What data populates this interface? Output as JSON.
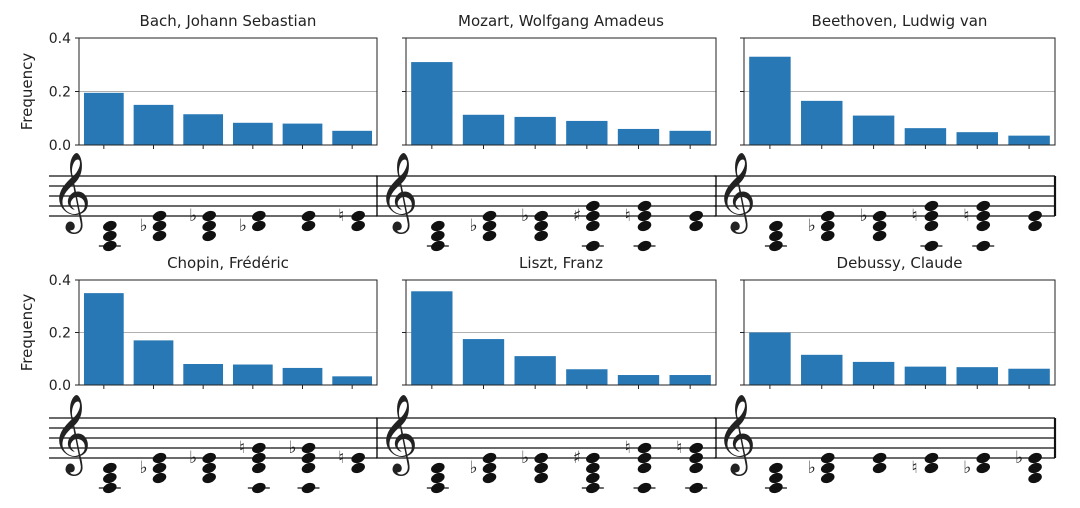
{
  "chart_data": [
    {
      "type": "bar",
      "title": "Bach, Johann Sebastian",
      "ylabel": "Frequency",
      "ylim": [
        0,
        0.4
      ],
      "yticks": [
        "0.0",
        "0.2",
        "0.4"
      ],
      "values": [
        0.195,
        0.15,
        0.115,
        0.083,
        0.08,
        0.053
      ],
      "gridline": 0.2,
      "chords": [
        {
          "notes": [
            -6,
            -4,
            -2
          ],
          "acc": []
        },
        {
          "notes": [
            -4,
            -2,
            0
          ],
          "acc": [
            -2
          ]
        },
        {
          "notes": [
            -4,
            -2,
            0
          ],
          "acc": [
            0
          ]
        },
        {
          "notes": [
            -2,
            0
          ],
          "acc": [
            -2
          ]
        },
        {
          "notes": [
            -2,
            0
          ],
          "acc": []
        },
        {
          "notes": [
            -2,
            0
          ],
          "acc": [
            0
          ],
          "nat": true
        }
      ]
    },
    {
      "type": "bar",
      "title": "Mozart, Wolfgang Amadeus",
      "ylabel": "",
      "ylim": [
        0,
        0.4
      ],
      "yticks": [],
      "values": [
        0.31,
        0.113,
        0.105,
        0.09,
        0.06,
        0.053
      ],
      "gridline": 0.2,
      "chords": [
        {
          "notes": [
            -6,
            -4,
            -2
          ],
          "acc": []
        },
        {
          "notes": [
            -4,
            -2,
            0
          ],
          "acc": [
            -2
          ]
        },
        {
          "notes": [
            -4,
            -2,
            0
          ],
          "acc": [
            0
          ]
        },
        {
          "notes": [
            -6,
            -2,
            0,
            2
          ],
          "acc": [
            0
          ],
          "sharp": true
        },
        {
          "notes": [
            -6,
            -2,
            0,
            2
          ],
          "acc": [
            0
          ],
          "nat": true
        },
        {
          "notes": [
            -2,
            0
          ],
          "acc": []
        }
      ]
    },
    {
      "type": "bar",
      "title": "Beethoven, Ludwig van",
      "ylabel": "",
      "ylim": [
        0,
        0.4
      ],
      "yticks": [],
      "values": [
        0.33,
        0.165,
        0.11,
        0.063,
        0.048,
        0.035
      ],
      "gridline": 0.2,
      "chords": [
        {
          "notes": [
            -6,
            -4,
            -2
          ],
          "acc": []
        },
        {
          "notes": [
            -4,
            -2,
            0
          ],
          "acc": [
            -2
          ]
        },
        {
          "notes": [
            -4,
            -2,
            0
          ],
          "acc": [
            0
          ]
        },
        {
          "notes": [
            -6,
            -2,
            0,
            2
          ],
          "acc": [
            0
          ],
          "nat": true
        },
        {
          "notes": [
            -6,
            -2,
            0,
            2
          ],
          "acc": [
            0
          ],
          "nat": true
        },
        {
          "notes": [
            -2,
            0
          ],
          "acc": []
        }
      ]
    },
    {
      "type": "bar",
      "title": "Chopin, Frédéric",
      "ylabel": "Frequency",
      "ylim": [
        0,
        0.4
      ],
      "yticks": [
        "0.0",
        "0.2",
        "0.4"
      ],
      "values": [
        0.35,
        0.17,
        0.08,
        0.078,
        0.065,
        0.033
      ],
      "gridline": 0.2,
      "chords": [
        {
          "notes": [
            -6,
            -4,
            -2
          ],
          "acc": []
        },
        {
          "notes": [
            -4,
            -2,
            0
          ],
          "acc": [
            -2
          ]
        },
        {
          "notes": [
            -4,
            -2,
            0
          ],
          "acc": [
            0
          ]
        },
        {
          "notes": [
            -6,
            -2,
            0,
            2
          ],
          "acc": [
            2
          ],
          "nat": true
        },
        {
          "notes": [
            -6,
            -2,
            0,
            2
          ],
          "acc": [
            2
          ]
        },
        {
          "notes": [
            -2,
            0
          ],
          "acc": [
            0
          ],
          "nat": true
        }
      ]
    },
    {
      "type": "bar",
      "title": "Liszt, Franz",
      "ylabel": "",
      "ylim": [
        0,
        0.4
      ],
      "yticks": [],
      "values": [
        0.357,
        0.175,
        0.11,
        0.06,
        0.038,
        0.038
      ],
      "gridline": 0.2,
      "chords": [
        {
          "notes": [
            -6,
            -4,
            -2
          ],
          "acc": []
        },
        {
          "notes": [
            -4,
            -2,
            0
          ],
          "acc": [
            -2
          ]
        },
        {
          "notes": [
            -4,
            -2,
            0
          ],
          "acc": [
            0
          ]
        },
        {
          "notes": [
            -6,
            -4,
            -2,
            0
          ],
          "acc": [
            0
          ],
          "sharp": true
        },
        {
          "notes": [
            -6,
            -2,
            0,
            2
          ],
          "acc": [
            2
          ],
          "nat": true
        },
        {
          "notes": [
            -6,
            -2,
            0,
            2
          ],
          "acc": [
            2
          ],
          "nat": true
        }
      ]
    },
    {
      "type": "bar",
      "title": "Debussy, Claude",
      "ylabel": "",
      "ylim": [
        0,
        0.4
      ],
      "yticks": [],
      "values": [
        0.2,
        0.115,
        0.088,
        0.07,
        0.068,
        0.062
      ],
      "gridline": 0.2,
      "chords": [
        {
          "notes": [
            -6,
            -4,
            -2
          ],
          "acc": []
        },
        {
          "notes": [
            -4,
            -2,
            0
          ],
          "acc": [
            -2
          ]
        },
        {
          "notes": [
            -2,
            0
          ],
          "acc": []
        },
        {
          "notes": [
            -2,
            0
          ],
          "acc": [
            -2
          ],
          "nat": true
        },
        {
          "notes": [
            -2,
            0
          ],
          "acc": [
            -2
          ]
        },
        {
          "notes": [
            -4,
            -2,
            0
          ],
          "acc": [
            0
          ]
        }
      ]
    }
  ],
  "colors": {
    "bar": "#2878b5",
    "axis": "#222222",
    "grid": "#b0b0b0"
  }
}
